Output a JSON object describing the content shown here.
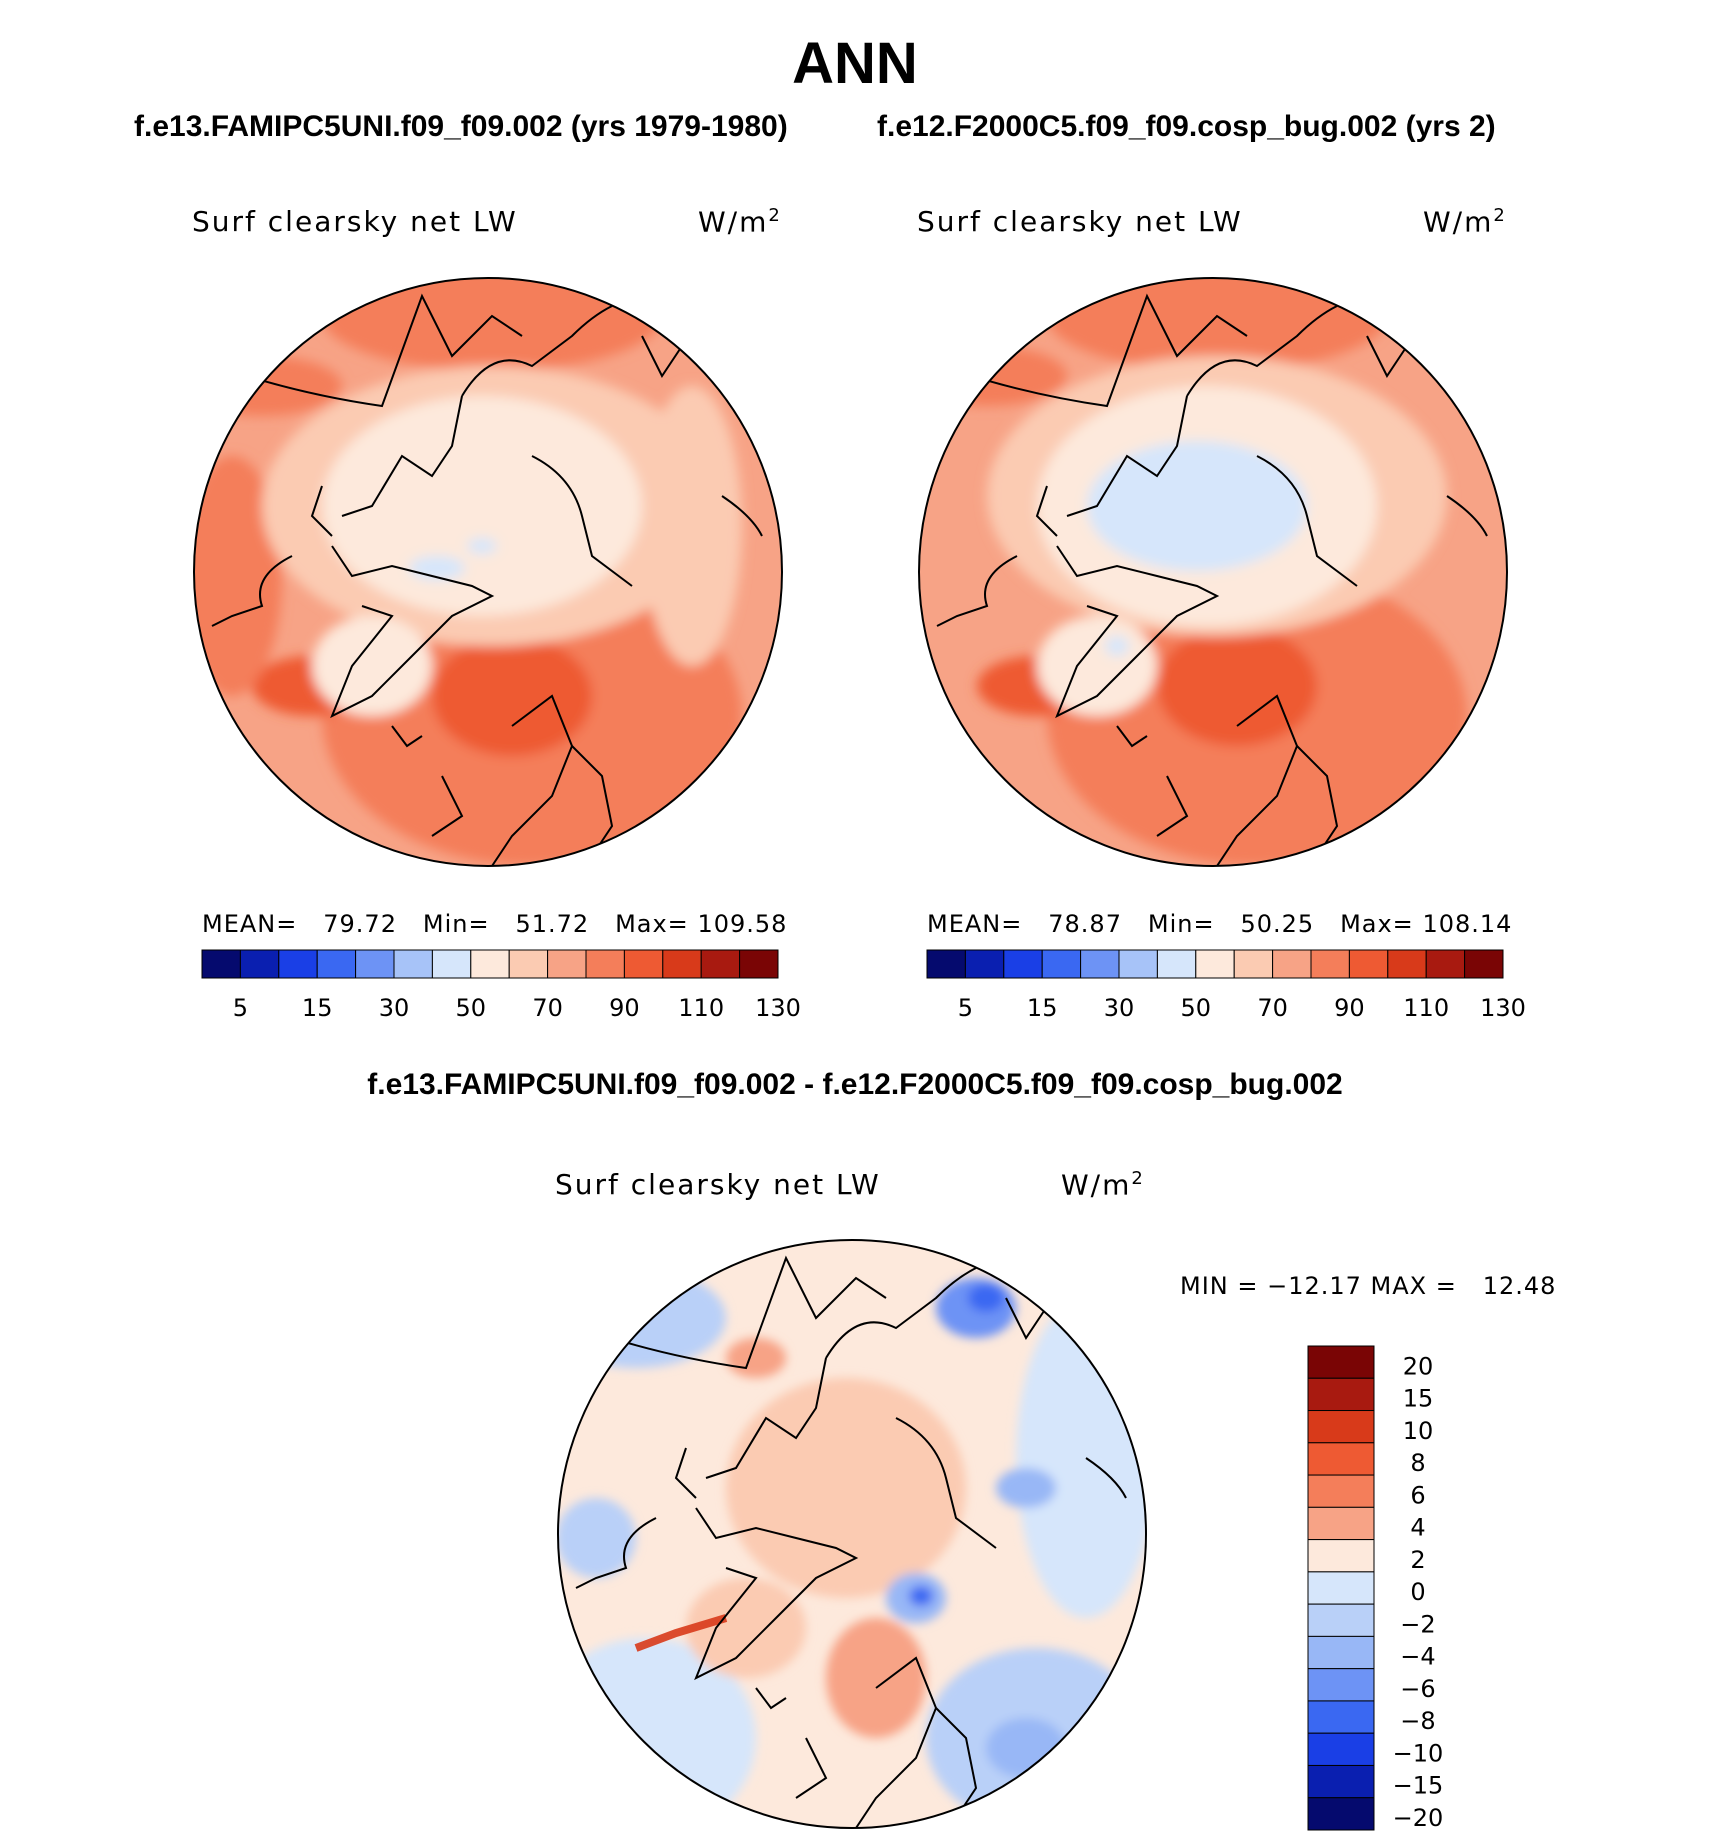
{
  "page": {
    "title": "ANN"
  },
  "panels": [
    {
      "case_title": "f.e13.FAMIPC5UNI.f09_f09.002 (yrs 1979-1980)",
      "variable": "Surf clearsky net LW",
      "units": "W/m",
      "units_exp": "2",
      "stats": {
        "mean_label": "MEAN=",
        "mean": "79.72",
        "min_label": "Min=",
        "min": "51.72",
        "max_label": "Max=",
        "max": "109.58"
      }
    },
    {
      "case_title": "f.e12.F2000C5.f09_f09.cosp_bug.002 (yrs 2)",
      "variable": "Surf clearsky net LW",
      "units": "W/m",
      "units_exp": "2",
      "stats": {
        "mean_label": "MEAN=",
        "mean": "78.87",
        "min_label": "Min=",
        "min": "50.25",
        "max_label": "Max=",
        "max": "108.14"
      }
    }
  ],
  "diff": {
    "title": "f.e13.FAMIPC5UNI.f09_f09.002 - f.e12.F2000C5.f09_f09.cosp_bug.002",
    "variable": "Surf clearsky net LW",
    "units": "W/m",
    "units_exp": "2",
    "stats_text": "MIN = −12.17 MAX =   12.48"
  },
  "chart_data": [
    {
      "type": "heatmap",
      "title": "Surf clearsky net LW (f.e13.FAMIPC5UNI.f09_f09.002, yrs 1979-1980)",
      "projection": "north polar stereographic",
      "units": "W/m2",
      "stats": {
        "mean": 79.72,
        "min": 51.72,
        "max": 109.58
      },
      "colorbar_orientation": "horizontal",
      "colorbar_ticks": [
        "5",
        "15",
        "30",
        "50",
        "70",
        "90",
        "110",
        "130"
      ],
      "colorbar_colors": [
        "#050a6e",
        "#0a1fb0",
        "#1a3fe6",
        "#3a68f2",
        "#6d93f5",
        "#a7c3f8",
        "#d6e6fb",
        "#fde9dc",
        "#fbcbb2",
        "#f7a386",
        "#f47e5a",
        "#ee5a33",
        "#d83a1a",
        "#a81a10",
        "#7a0505"
      ]
    },
    {
      "type": "heatmap",
      "title": "Surf clearsky net LW (f.e12.F2000C5.f09_f09.cosp_bug.002, yrs 2)",
      "projection": "north polar stereographic",
      "units": "W/m2",
      "stats": {
        "mean": 78.87,
        "min": 50.25,
        "max": 108.14
      },
      "colorbar_orientation": "horizontal",
      "colorbar_ticks": [
        "5",
        "15",
        "30",
        "50",
        "70",
        "90",
        "110",
        "130"
      ],
      "colorbar_colors": [
        "#050a6e",
        "#0a1fb0",
        "#1a3fe6",
        "#3a68f2",
        "#6d93f5",
        "#a7c3f8",
        "#d6e6fb",
        "#fde9dc",
        "#fbcbb2",
        "#f7a386",
        "#f47e5a",
        "#ee5a33",
        "#d83a1a",
        "#a81a10",
        "#7a0505"
      ]
    },
    {
      "type": "heatmap",
      "title": "Surf clearsky net LW difference",
      "projection": "north polar stereographic",
      "units": "W/m2",
      "stats": {
        "min": -12.17,
        "max": 12.48
      },
      "colorbar_orientation": "vertical",
      "colorbar_ticks": [
        "20",
        "15",
        "10",
        "8",
        "6",
        "4",
        "2",
        "0",
        "−2",
        "−4",
        "−6",
        "−8",
        "−10",
        "−15",
        "−20"
      ],
      "colorbar_colors": [
        "#7a0505",
        "#a81a10",
        "#d83a1a",
        "#ee5a33",
        "#f47e5a",
        "#f7a386",
        "#fde9dc",
        "#d6e6fb",
        "#b9d0f8",
        "#98b7f6",
        "#6d93f5",
        "#3a68f2",
        "#1a3fe6",
        "#0a1fb0",
        "#050a6e"
      ]
    }
  ]
}
